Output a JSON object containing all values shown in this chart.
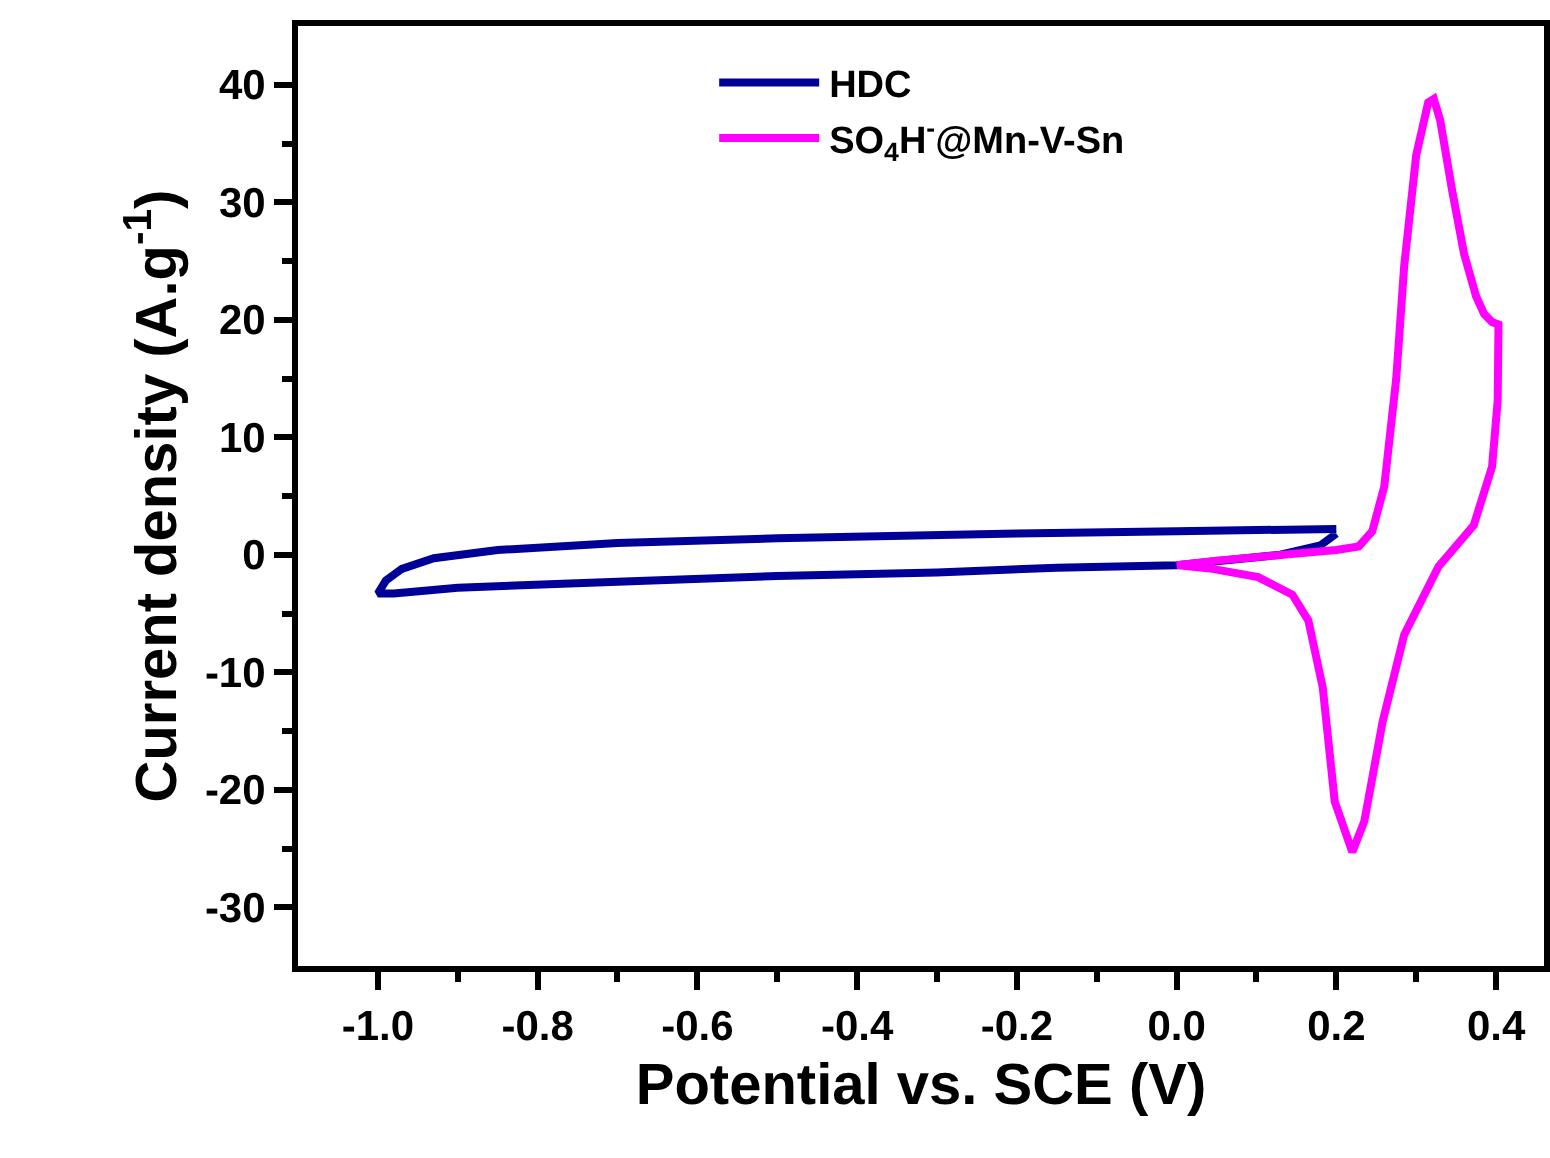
{
  "chart_data": {
    "type": "line",
    "xlabel": "Potential vs. SCE (V)",
    "ylabel": "Current density (A.g$^{-1}$)",
    "xlim": [
      -1.1,
      0.46
    ],
    "ylim": [
      -35,
      45
    ],
    "xticks": [
      {
        "value": -1.0,
        "label": "-1.0"
      },
      {
        "value": -0.9,
        "label": null
      },
      {
        "value": -0.8,
        "label": "-0.8"
      },
      {
        "value": -0.7,
        "label": null
      },
      {
        "value": -0.6,
        "label": "-0.6"
      },
      {
        "value": -0.5,
        "label": null
      },
      {
        "value": -0.4,
        "label": "-0.4"
      },
      {
        "value": -0.3,
        "label": null
      },
      {
        "value": -0.2,
        "label": "-0.2"
      },
      {
        "value": -0.1,
        "label": null
      },
      {
        "value": 0.0,
        "label": "0.0"
      },
      {
        "value": 0.1,
        "label": null
      },
      {
        "value": 0.2,
        "label": "0.2"
      },
      {
        "value": 0.3,
        "label": null
      },
      {
        "value": 0.4,
        "label": "0.4"
      }
    ],
    "yticks": [
      {
        "value": -30,
        "label": "-30"
      },
      {
        "value": -25,
        "label": null
      },
      {
        "value": -20,
        "label": "-20"
      },
      {
        "value": -15,
        "label": null
      },
      {
        "value": -10,
        "label": "-10"
      },
      {
        "value": -5,
        "label": null
      },
      0,
      {
        "value": 5,
        "label": null
      },
      10,
      {
        "value": 15,
        "label": null
      },
      20,
      {
        "value": 25,
        "label": null
      },
      30,
      {
        "value": 35,
        "label": null
      },
      40
    ],
    "legend": "top",
    "marker": "none",
    "line_style": "solid",
    "series": [
      {
        "name": "HDC",
        "color": "#000099",
        "x": [
          0.2,
          0.1,
          0.0,
          -0.2,
          -0.5,
          -0.7,
          -0.85,
          -0.93,
          -0.97,
          -0.99,
          -1.0,
          -0.98,
          -0.9,
          -0.7,
          -0.5,
          -0.3,
          -0.15,
          0.0,
          0.13,
          0.18,
          0.2
        ],
        "values": [
          2.2,
          2.1,
          2.0,
          1.8,
          1.4,
          1.0,
          0.4,
          -0.3,
          -1.2,
          -2.2,
          -3.3,
          -3.3,
          -2.8,
          -2.3,
          -1.8,
          -1.5,
          -1.1,
          -0.9,
          0.0,
          0.8,
          1.8
        ]
      },
      {
        "name": "SO$_{4}$H$^{-}$@Mn-V-Sn",
        "color": "#ff00ff",
        "x": [
          0.0,
          0.05,
          0.15,
          0.2,
          0.228,
          0.245,
          0.26,
          0.275,
          0.285,
          0.3,
          0.315,
          0.322,
          0.33,
          0.345,
          0.36,
          0.375,
          0.385,
          0.395,
          0.403,
          0.402,
          0.395,
          0.372,
          0.328,
          0.285,
          0.258,
          0.235,
          0.22,
          0.198,
          0.183,
          0.165,
          0.145,
          0.102,
          0.045,
          0.002
        ],
        "values": [
          -0.9,
          -0.5,
          0.1,
          0.4,
          0.7,
          2.0,
          5.8,
          15,
          24.6,
          34,
          38.5,
          38.8,
          37,
          31,
          25.6,
          22,
          20.5,
          19.8,
          19.6,
          13.1,
          7.5,
          2.5,
          -1.0,
          -6.8,
          -14.2,
          -22.7,
          -25.3,
          -21,
          -11.3,
          -5.6,
          -3.4,
          -1.9,
          -1.2,
          -0.9
        ]
      }
    ]
  }
}
